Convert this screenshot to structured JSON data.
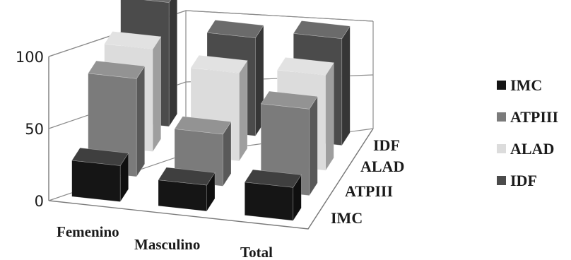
{
  "chart_data": {
    "type": "bar",
    "subtype": "3d-column",
    "categories": [
      "Femenino",
      "Masculino",
      "Total"
    ],
    "series": [
      {
        "name": "IMC",
        "values": [
          25,
          18,
          23
        ],
        "color": "#151515"
      },
      {
        "name": "ATPIII",
        "values": [
          68,
          36,
          60
        ],
        "color": "#7b7b7b"
      },
      {
        "name": "ALAD",
        "values": [
          71,
          61,
          66
        ],
        "color": "#dcdcdc"
      },
      {
        "name": "IDF",
        "values": [
          86,
          68,
          74
        ],
        "color": "#4b4b4b"
      }
    ],
    "depth_labels": [
      "IMC",
      "ATPIII",
      "ALAD",
      "IDF"
    ],
    "yticks": [
      "0",
      "50",
      "100"
    ],
    "ylim": [
      0,
      100
    ],
    "grid": true,
    "legend_position": "right",
    "title": "",
    "xlabel": "",
    "ylabel": ""
  }
}
